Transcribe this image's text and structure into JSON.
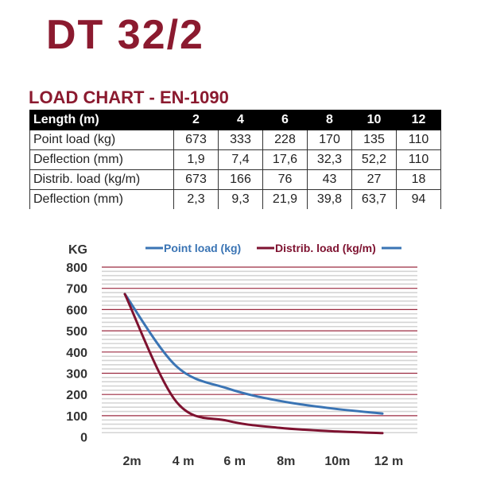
{
  "title": "DT 32/2",
  "subtitle": "LOAD CHART - EN-1090",
  "table": {
    "header": [
      "Length (m)",
      "2",
      "4",
      "6",
      "8",
      "10",
      "12"
    ],
    "rows": [
      [
        "Point load (kg)",
        "673",
        "333",
        "228",
        "170",
        "135",
        "110"
      ],
      [
        "Deflection (mm)",
        "1,9",
        "7,4",
        "17,6",
        "32,3",
        "52,2",
        "110"
      ],
      [
        "Distrib. load (kg/m)",
        "673",
        "166",
        "76",
        "43",
        "27",
        "18"
      ],
      [
        "Deflection (mm)",
        "2,3",
        "9,3",
        "21,9",
        "39,8",
        "63,7",
        "94"
      ]
    ]
  },
  "chart_data": {
    "type": "line",
    "ylabel": "KG",
    "x": [
      2,
      4,
      6,
      8,
      10,
      12
    ],
    "xtick_labels": [
      "2m",
      "4 m",
      "6 m",
      "8m",
      "10m",
      "12 m"
    ],
    "yticks": [
      0,
      100,
      200,
      300,
      400,
      500,
      600,
      700,
      800
    ],
    "ylim": [
      0,
      800
    ],
    "grid": true,
    "legend_placement": "top",
    "series": [
      {
        "name": "Point load (kg)",
        "color": "#3a74b4",
        "values": [
          673,
          333,
          228,
          170,
          135,
          110
        ]
      },
      {
        "name": "Distrib. load (kg/m)",
        "color": "#7e1230",
        "values": [
          673,
          166,
          76,
          43,
          27,
          18
        ]
      }
    ]
  }
}
